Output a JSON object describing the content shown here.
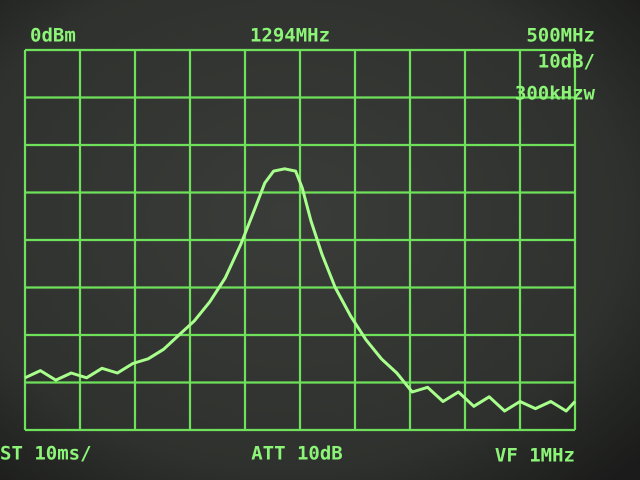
{
  "chart_data": {
    "type": "line",
    "annotations": [
      "0dBm",
      "1294MHz",
      "500MHz",
      "10dB/",
      "300kHzw",
      "ST 10ms/",
      "ATT 10dB",
      "VF 1MHz"
    ],
    "x": [
      1044,
      1058,
      1072,
      1086,
      1100,
      1114,
      1128,
      1142,
      1156,
      1170,
      1184,
      1198,
      1212,
      1226,
      1240,
      1252,
      1262,
      1270,
      1280,
      1290,
      1296,
      1304,
      1314,
      1326,
      1340,
      1354,
      1368,
      1382,
      1396,
      1410,
      1424,
      1438,
      1452,
      1466,
      1480,
      1494,
      1508,
      1522,
      1536,
      1544
    ],
    "series": [
      {
        "color": "#a8ff8c",
        "values": [
          -69,
          -67.5,
          -69.5,
          -68,
          -69,
          -67,
          -68,
          -66,
          -65,
          -63,
          -60,
          -57,
          -53,
          -48,
          -41,
          -34,
          -28,
          -25.5,
          -25,
          -25.5,
          -29,
          -36,
          -43,
          -50,
          -56,
          -61,
          -65,
          -68,
          -72,
          -71,
          -74,
          -72,
          -75,
          -73,
          -76,
          -74,
          -75.5,
          -74,
          -76,
          -74
        ]
      }
    ],
    "xlim": [
      1044,
      1544
    ],
    "ylim": [
      -80,
      0
    ],
    "xticks": [
      1044,
      1094,
      1144,
      1194,
      1244,
      1294,
      1344,
      1394,
      1444,
      1494,
      1544
    ],
    "yticks": [
      -80,
      -70,
      -60,
      -50,
      -40,
      -30,
      -20,
      -10,
      0
    ],
    "grid": true,
    "grid_color": "#6ee05a"
  }
}
